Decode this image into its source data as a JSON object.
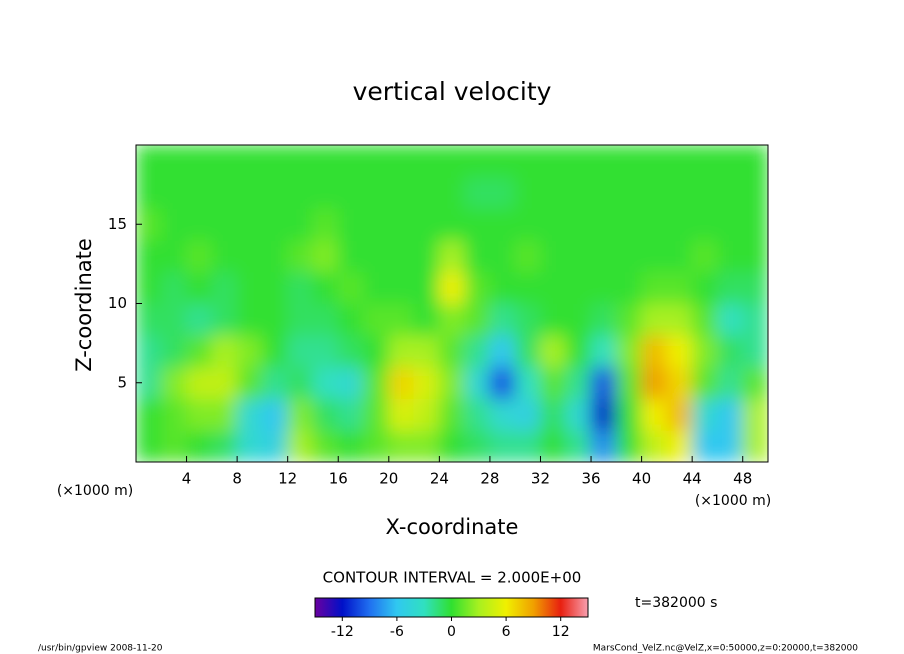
{
  "chart_data": {
    "type": "heatmap",
    "title": "vertical velocity",
    "x_label": "X-coordinate",
    "y_label": "Z-coordinate",
    "x_unit_label": "(×1000 m)",
    "y_unit_label": "(×1000 m)",
    "contour_note": "CONTOUR INTERVAL = 2.000E+00",
    "time_label": "t=382000 s",
    "footer_left": "/usr/bin/gpview  2008-11-20",
    "footer_right": "MarsCond_VelZ.nc@VelZ,x=0:50000,z=0:20000,t=382000",
    "xlim": [
      0,
      50
    ],
    "ylim": [
      0,
      20
    ],
    "xticks": [
      4,
      8,
      12,
      16,
      20,
      24,
      28,
      32,
      36,
      40,
      44,
      48
    ],
    "yticks": [
      5,
      10,
      15
    ],
    "x": [
      1,
      3,
      5,
      7,
      9,
      11,
      13,
      15,
      17,
      19,
      21,
      23,
      25,
      27,
      29,
      31,
      33,
      35,
      37,
      39,
      41,
      43,
      45,
      47,
      49
    ],
    "z": [
      1,
      3,
      5,
      7,
      9,
      11,
      13,
      15,
      17,
      19
    ],
    "values": [
      [
        0,
        1,
        0,
        -1,
        -4,
        -5,
        3,
        1,
        0,
        1,
        2,
        2,
        0,
        -1,
        -2,
        -2,
        0,
        -2,
        -8,
        0,
        4,
        6,
        -6,
        -6,
        3
      ],
      [
        0,
        1,
        2,
        2,
        -4,
        -6,
        2,
        -1,
        -2,
        1,
        5,
        4,
        1,
        -2,
        -4,
        -5,
        -1,
        -4,
        -12,
        0,
        6,
        8,
        -4,
        -6,
        3
      ],
      [
        -2,
        2,
        4,
        4,
        1,
        -2,
        -1,
        -3,
        -4,
        1,
        7,
        5,
        2,
        -4,
        -10,
        -3,
        1,
        -2,
        -10,
        1,
        9,
        7,
        1,
        -2,
        1
      ],
      [
        -2,
        -1,
        1,
        3,
        2,
        0,
        -2,
        -2,
        -1,
        0,
        3,
        3,
        1,
        -2,
        -6,
        -1,
        3,
        0,
        -3,
        2,
        8,
        6,
        2,
        -1,
        -2
      ],
      [
        -1,
        -1,
        -2,
        -1,
        0,
        0,
        -1,
        -1,
        0,
        1,
        1,
        0,
        2,
        1,
        -2,
        -1,
        0,
        0,
        -1,
        1,
        3,
        3,
        1,
        -3,
        -2
      ],
      [
        0,
        -1,
        0,
        -1,
        0,
        0,
        -1,
        0,
        1,
        0,
        0,
        0,
        6,
        1,
        0,
        0,
        0,
        0,
        0,
        0,
        1,
        1,
        0,
        -1,
        -1
      ],
      [
        0,
        0,
        1,
        0,
        0,
        0,
        1,
        2,
        0,
        0,
        0,
        0,
        3,
        0,
        0,
        1,
        0,
        0,
        0,
        0,
        0,
        0,
        1,
        0,
        0
      ],
      [
        1,
        0,
        0,
        0,
        0,
        0,
        0,
        1,
        0,
        0,
        0,
        0,
        0,
        0,
        0,
        0,
        0,
        0,
        0,
        0,
        0,
        0,
        0,
        0,
        0
      ],
      [
        0,
        0,
        0,
        0,
        0,
        0,
        0,
        0,
        0,
        0,
        0,
        0,
        0,
        -1,
        -1,
        0,
        0,
        0,
        0,
        0,
        0,
        0,
        0,
        0,
        0
      ],
      [
        0,
        0,
        0,
        0,
        0,
        0,
        0,
        0,
        0,
        0,
        0,
        0,
        0,
        0,
        0,
        0,
        0,
        0,
        0,
        0,
        0,
        0,
        0,
        0,
        0
      ]
    ],
    "clim": [
      -15,
      15
    ],
    "colorbar_ticks": [
      -12,
      -6,
      0,
      6,
      12
    ],
    "colormap": [
      "#6a00a0",
      "#0010c8",
      "#2070f0",
      "#30c8f0",
      "#30e0c0",
      "#30e030",
      "#a8f020",
      "#f0f000",
      "#f0a000",
      "#e82010",
      "#f8a0b0"
    ]
  }
}
